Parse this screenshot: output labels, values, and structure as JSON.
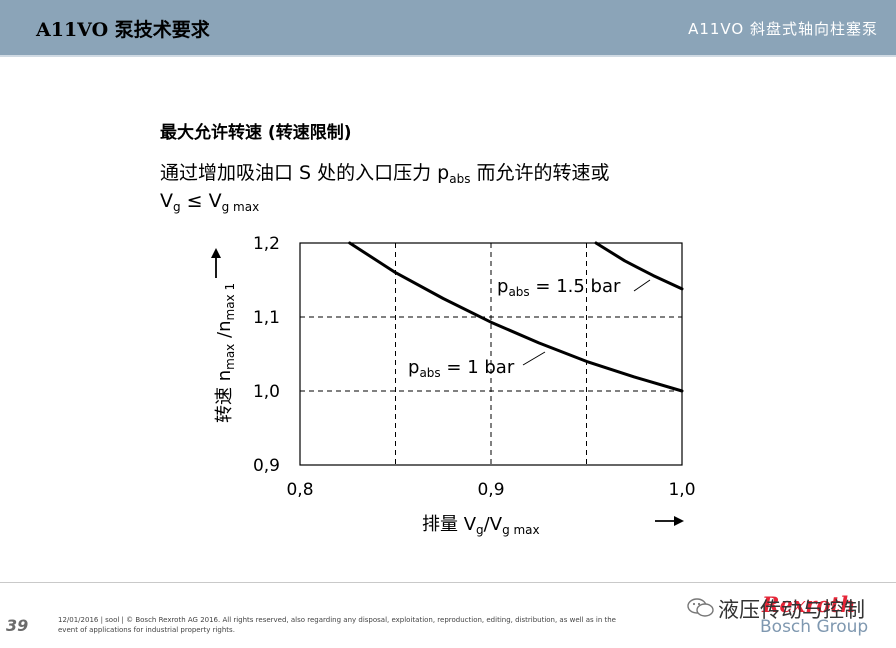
{
  "header": {
    "left_title": "A11VO 泵技术要求",
    "right_title": "A11VO  斜盘式轴向柱塞泵"
  },
  "slide": {
    "title": "最大允许转速 (转速限制)",
    "desc_line1_prefix": "通过增加吸油口 S 处的入口压力 p",
    "desc_line1_sub": "abs",
    "desc_line1_suffix": " 而允许的转速或",
    "desc_line2_v1": "V",
    "desc_line2_v1_sub": "g",
    "desc_line2_op": " ≤ V",
    "desc_line2_v2_sub": "g max"
  },
  "chart_data": {
    "type": "line",
    "xlabel": "排量 V_g/V_g max",
    "ylabel": "转速 n_max/n_max 1",
    "xlim": [
      0.8,
      1.0
    ],
    "ylim": [
      0.9,
      1.2
    ],
    "x_ticks": [
      "0,8",
      "0,9",
      "1,0"
    ],
    "y_ticks": [
      "0,9",
      "1,0",
      "1,1",
      "1,2"
    ],
    "grid": "dashed",
    "series": [
      {
        "name": "p_abs = 1 bar",
        "x": [
          0.826,
          0.85,
          0.875,
          0.9,
          0.925,
          0.95,
          0.975,
          1.0
        ],
        "y": [
          1.2,
          1.16,
          1.125,
          1.093,
          1.065,
          1.04,
          1.019,
          1.0
        ]
      },
      {
        "name": "p_abs = 1.5 bar",
        "x": [
          0.955,
          0.97,
          0.985,
          1.0
        ],
        "y": [
          1.2,
          1.176,
          1.156,
          1.138
        ]
      }
    ],
    "labels": {
      "s1_p": "p",
      "s1_sub": "abs",
      "s1_val": " = 1 bar",
      "s2_p": "p",
      "s2_sub": "abs",
      "s2_val": " = 1.5 bar",
      "x_pre": "排量 V",
      "x_sub1": "g",
      "x_mid": "/V",
      "x_sub2": "g max",
      "y_pre": "转速 n",
      "y_sub1": "max",
      "y_mid": " /n",
      "y_sub2": "max 1"
    }
  },
  "footer": {
    "page_number": "39",
    "legal_line1": "12/01/2016 | sool | © Bosch Rexroth AG 2016. All rights reserved, also regarding any disposal, exploitation, reproduction, editing, distribution, as well as in the",
    "legal_line2": "event of applications for industrial property rights.",
    "watermark": "液压传动与控制",
    "logo_text": "Rexroth",
    "group_text": "Bosch Group"
  },
  "colors": {
    "header_bg": "#8ba4b8",
    "brand_red": "#e20015",
    "group_blue": "#7f98b0"
  }
}
